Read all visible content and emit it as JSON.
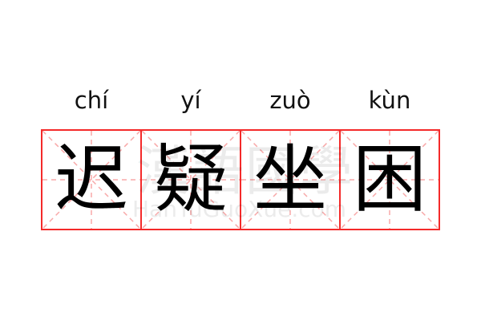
{
  "phrase": [
    {
      "pinyin": "chí",
      "char": "迟"
    },
    {
      "pinyin": "yí",
      "char": "疑"
    },
    {
      "pinyin": "zuò",
      "char": "坐"
    },
    {
      "pinyin": "kùn",
      "char": "困"
    }
  ],
  "watermark": {
    "chinese": "漢語國學",
    "latin": "HanYuGuoXue.com"
  },
  "colors": {
    "grid_border": "#f42a2a",
    "guide_lines": "#f8a8a8",
    "text": "#000000"
  }
}
